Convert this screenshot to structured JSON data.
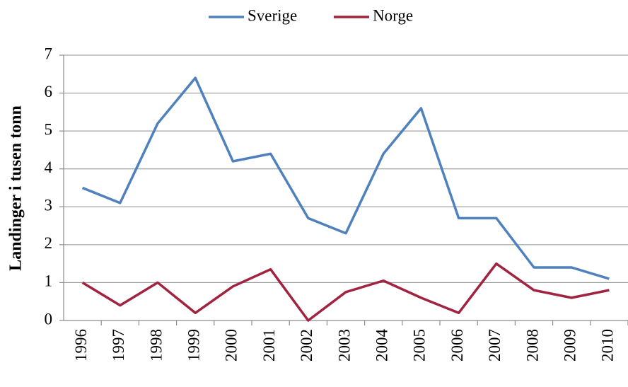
{
  "chart_data": {
    "type": "line",
    "y_label": "Landinger i tusen tonn",
    "categories": [
      "1996",
      "1997",
      "1998",
      "1999",
      "2000",
      "2001",
      "2002",
      "2003",
      "2004",
      "2005",
      "2006",
      "2007",
      "2008",
      "2009",
      "2010"
    ],
    "series": [
      {
        "name": "Sverige",
        "color": "#4f81bd",
        "values": [
          3.5,
          3.1,
          5.2,
          6.4,
          4.2,
          4.4,
          2.7,
          2.3,
          4.4,
          5.6,
          2.7,
          2.7,
          1.4,
          1.4,
          1.1
        ]
      },
      {
        "name": "Norge",
        "color": "#a0233f",
        "values": [
          1.0,
          0.4,
          1.0,
          0.2,
          0.9,
          1.35,
          0,
          0.75,
          1.05,
          0.6,
          0.2,
          1.5,
          0.8,
          0.6,
          0.8
        ]
      }
    ],
    "ylim": [
      0,
      7
    ],
    "yticks": [
      0,
      1,
      2,
      3,
      4,
      5,
      6,
      7
    ],
    "grid": true,
    "legend": "top"
  }
}
